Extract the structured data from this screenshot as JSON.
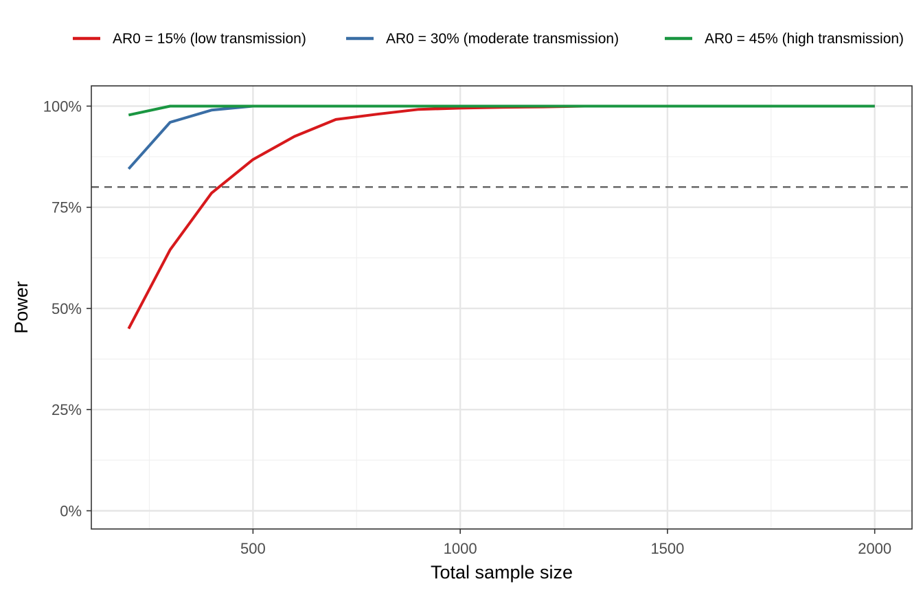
{
  "chart_data": {
    "type": "line",
    "title": "",
    "xlabel": "Total sample size",
    "ylabel": "Power",
    "xlim": [
      110,
      2090
    ],
    "ylim": [
      -0.045,
      1.05
    ],
    "x_ticks": [
      500,
      1000,
      1500,
      2000
    ],
    "x_tick_labels": [
      "500",
      "1000",
      "1500",
      "2000"
    ],
    "y_ticks": [
      0,
      0.25,
      0.5,
      0.75,
      1.0
    ],
    "y_tick_labels": [
      "0%",
      "25%",
      "50%",
      "75%",
      "100%"
    ],
    "x_minor_ticks": [
      250,
      750,
      1250,
      1750
    ],
    "y_minor_ticks": [
      0.125,
      0.375,
      0.625,
      0.875
    ],
    "grid": true,
    "legend_position": "top",
    "reference_line": {
      "y": 0.8,
      "style": "dashed",
      "color": "#595959"
    },
    "series": [
      {
        "name": "AR0 = 15% (low transmission)",
        "color": "#d7191c",
        "x": [
          200,
          300,
          400,
          500,
          600,
          700,
          800,
          900,
          1000,
          1100,
          1200,
          1300,
          1400,
          1500,
          1600,
          1700,
          1800,
          1900,
          2000
        ],
        "values": [
          0.45,
          0.645,
          0.785,
          0.868,
          0.925,
          0.967,
          0.98,
          0.992,
          0.995,
          0.997,
          0.998,
          1.0,
          1.0,
          1.0,
          1.0,
          1.0,
          1.0,
          1.0,
          1.0
        ]
      },
      {
        "name": "AR0 = 30% (moderate transmission)",
        "color": "#3a6ea5",
        "x": [
          200,
          300,
          400,
          500,
          600,
          700,
          800,
          900,
          1000,
          1100,
          1200,
          1300,
          1400,
          1500,
          1600,
          1700,
          1800,
          1900,
          2000
        ],
        "values": [
          0.845,
          0.96,
          0.99,
          1.0,
          1.0,
          1.0,
          1.0,
          1.0,
          1.0,
          1.0,
          1.0,
          1.0,
          1.0,
          1.0,
          1.0,
          1.0,
          1.0,
          1.0,
          1.0
        ]
      },
      {
        "name": "AR0 = 45% (high transmission)",
        "color": "#1a9641",
        "x": [
          200,
          300,
          400,
          500,
          600,
          700,
          800,
          900,
          1000,
          1100,
          1200,
          1300,
          1400,
          1500,
          1600,
          1700,
          1800,
          1900,
          2000
        ],
        "values": [
          0.978,
          1.0,
          1.0,
          1.0,
          1.0,
          1.0,
          1.0,
          1.0,
          1.0,
          1.0,
          1.0,
          1.0,
          1.0,
          1.0,
          1.0,
          1.0,
          1.0,
          1.0,
          1.0
        ]
      }
    ]
  }
}
